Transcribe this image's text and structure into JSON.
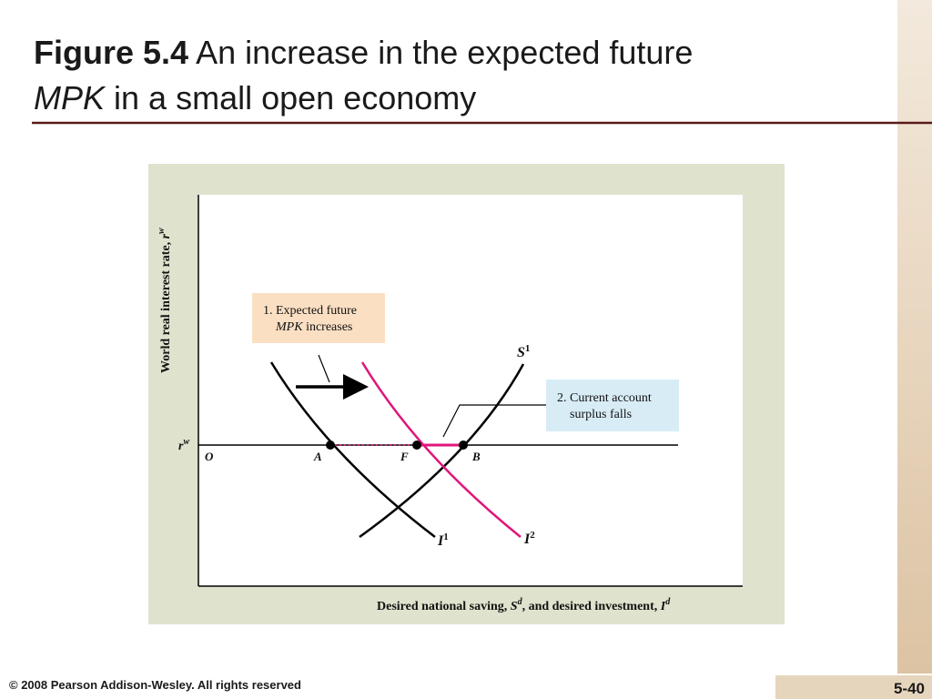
{
  "header": {
    "title_bold": "Figure 5.4",
    "title_rest": "An increase in the expected future",
    "title_italic": "MPK",
    "title_end": "in a small open economy"
  },
  "figure": {
    "y_axis_label": {
      "text": "World real interest rate, ",
      "symbol": "r",
      "sup": "w"
    },
    "x_axis_label": {
      "text1": "Desired national saving, ",
      "symbol1": "S",
      "sup1": "d",
      "text2": ", and desired investment, ",
      "symbol2": "I",
      "sup2": "d"
    },
    "rate_label": {
      "symbol": "r",
      "sup": "w"
    },
    "curves": [
      {
        "symbol": "S",
        "sup": "1"
      },
      {
        "symbol": "I",
        "sup": "1"
      },
      {
        "symbol": "I",
        "sup": "2"
      }
    ],
    "points": [
      "O",
      "A",
      "F",
      "B"
    ],
    "annotations": [
      {
        "line1": "1. Expected future",
        "italic": "MPK",
        "line2": "increases"
      },
      {
        "line1": "2. Current account",
        "line2": "surplus falls"
      }
    ]
  },
  "footer": {
    "copyright": "© 2008 Pearson Addison-Wesley. All rights reserved",
    "page": "5-40"
  }
}
